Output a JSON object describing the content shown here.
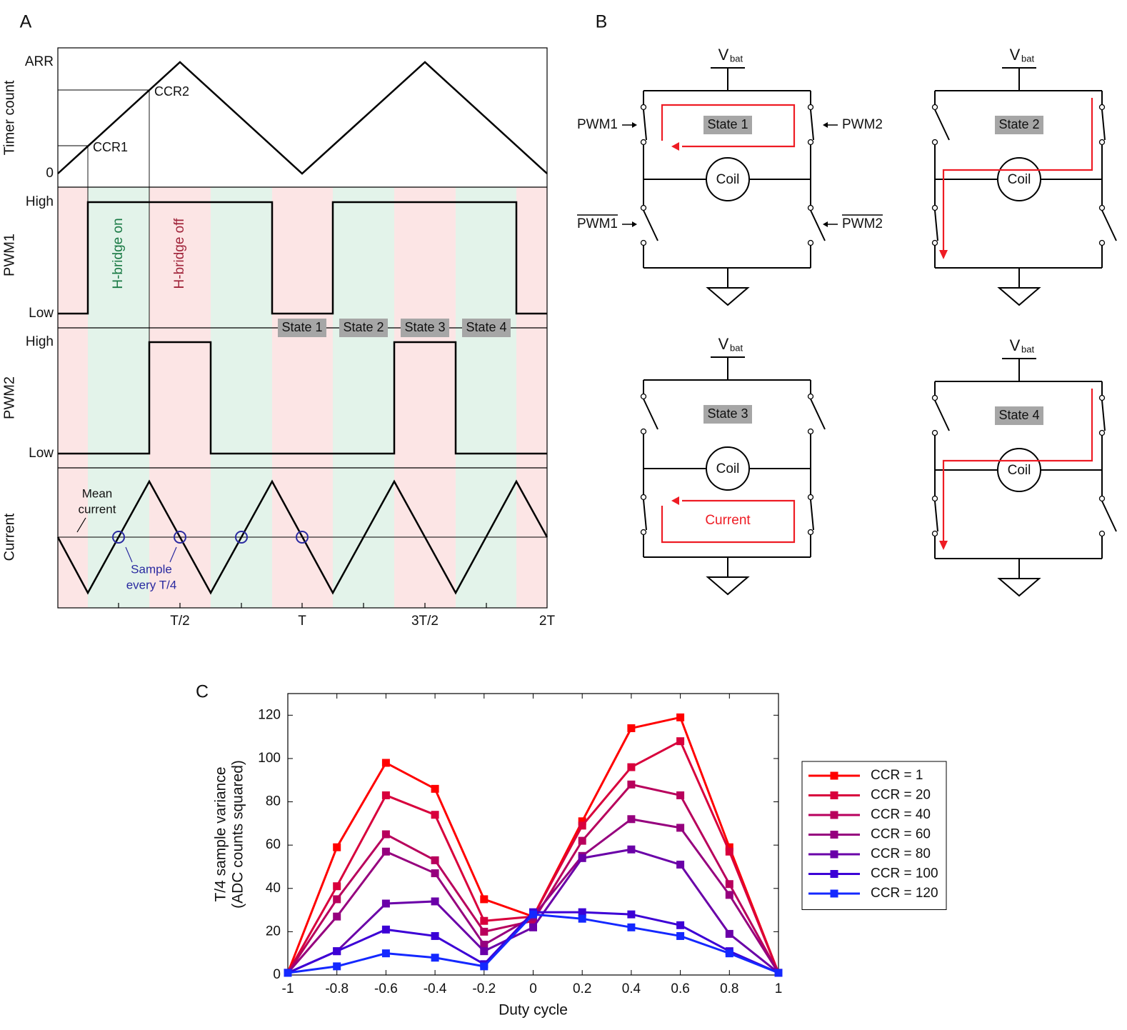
{
  "panel_labels": [
    "A",
    "B",
    "C"
  ],
  "panel_a": {
    "y_labels": [
      "Timer count",
      "PWM1",
      "PWM2",
      "Current"
    ],
    "timer_ticks": [
      "ARR",
      "0"
    ],
    "compare_labels": [
      "CCR1",
      "CCR2"
    ],
    "level_labels": [
      "High",
      "Low"
    ],
    "shading_labels": [
      "H-bridge on",
      "H-bridge off"
    ],
    "states": [
      "State 1",
      "State 2",
      "State 3",
      "State 4"
    ],
    "x_tick_labels": [
      "T/2",
      "T",
      "3T/2",
      "2T"
    ],
    "mean_label": [
      "Mean",
      "current"
    ],
    "sample_label": [
      "Sample",
      "every T/4"
    ]
  },
  "panel_b": {
    "supply": "V",
    "supply_sub": "bat",
    "coil": "Coil",
    "switch_labels": [
      "PWM1",
      "PWM2",
      "PWM1",
      "PWM2"
    ],
    "current": "Current"
  },
  "chart_data": {
    "type": "line",
    "xlabel": "Duty cycle",
    "ylabel": [
      "T/4 sample variance",
      "(ADC counts squared)"
    ],
    "x": [
      -1,
      -0.8,
      -0.6,
      -0.4,
      -0.2,
      0,
      0.2,
      0.4,
      0.6,
      0.8,
      1
    ],
    "xlim": [
      -1,
      1
    ],
    "xticks": [
      -1,
      -0.8,
      -0.6,
      -0.4,
      -0.2,
      0,
      0.2,
      0.4,
      0.6,
      0.8,
      1
    ],
    "ylim": [
      0,
      130
    ],
    "yticks": [
      0,
      20,
      40,
      60,
      80,
      100,
      120
    ],
    "legend": "east",
    "series": [
      {
        "name": "CCR = 1",
        "color": "#ff0000",
        "values": [
          1,
          59,
          98,
          86,
          35,
          27,
          71,
          114,
          119,
          59,
          1
        ]
      },
      {
        "name": "CCR = 20",
        "color": "#d8003c",
        "values": [
          1,
          41,
          83,
          74,
          25,
          27,
          69,
          96,
          108,
          57,
          1
        ]
      },
      {
        "name": "CCR = 40",
        "color": "#b8005c",
        "values": [
          1,
          35,
          65,
          53,
          20,
          25,
          62,
          88,
          83,
          42,
          1
        ]
      },
      {
        "name": "CCR = 60",
        "color": "#96007e",
        "values": [
          1,
          27,
          57,
          47,
          14,
          27,
          55,
          72,
          68,
          37,
          1
        ]
      },
      {
        "name": "CCR = 80",
        "color": "#6a00a8",
        "values": [
          1,
          11,
          33,
          34,
          11,
          22,
          54,
          58,
          51,
          19,
          1
        ]
      },
      {
        "name": "CCR = 100",
        "color": "#3c00d6",
        "values": [
          1,
          11,
          21,
          18,
          5,
          29,
          29,
          28,
          23,
          11,
          1
        ]
      },
      {
        "name": "CCR = 120",
        "color": "#1428ff",
        "values": [
          1,
          4,
          10,
          8,
          4,
          28,
          26,
          22,
          18,
          10,
          1
        ]
      }
    ]
  }
}
